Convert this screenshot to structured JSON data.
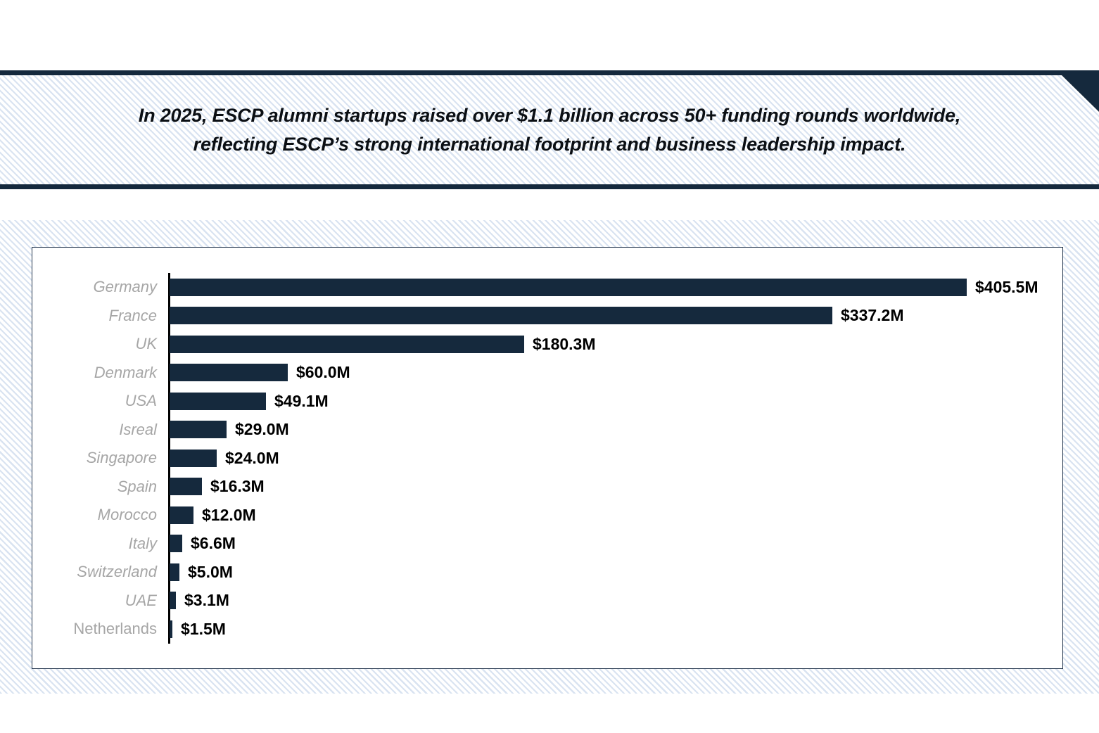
{
  "banner": {
    "headline_line1": "In 2025, ESCP alumni startups raised over $1.1 billion across 50+ funding rounds worldwide,",
    "headline_line2": "reflecting ESCP’s strong international footprint and business leadership impact."
  },
  "colors": {
    "navy": "#15293d",
    "bar_fill": "#15293d",
    "stripe_blue": "#d9e3f1",
    "category_label_gray": "#a6a6a6",
    "value_label_black": "#000000",
    "panel_border": "#24364d",
    "axis_black": "#000000"
  },
  "chart_data": {
    "type": "bar",
    "orientation": "horizontal",
    "title": "",
    "xlabel": "",
    "ylabel": "",
    "grid": false,
    "legend_position": "none",
    "xlim": [
      0,
      420
    ],
    "categories": [
      "Germany",
      "France",
      "UK",
      "Denmark",
      "USA",
      "Isreal",
      "Singapore",
      "Spain",
      "Morocco",
      "Italy",
      "Switzerland",
      "UAE",
      "Netherlands"
    ],
    "values": [
      405.5,
      337.2,
      180.3,
      60.0,
      49.1,
      29.0,
      24.0,
      16.3,
      12.0,
      6.6,
      5.0,
      3.1,
      1.5
    ],
    "value_labels": [
      "$405.5M",
      "$337.2M",
      "$180.3M",
      "$60.0M",
      "$49.1M",
      "$29.0M",
      "$24.0M",
      "$16.3M",
      "$12.0M",
      "$6.6M",
      "$5.0M",
      "$3.1M",
      "$1.5M"
    ],
    "units": "USD millions",
    "non_italic_categories": [
      "Netherlands"
    ]
  }
}
